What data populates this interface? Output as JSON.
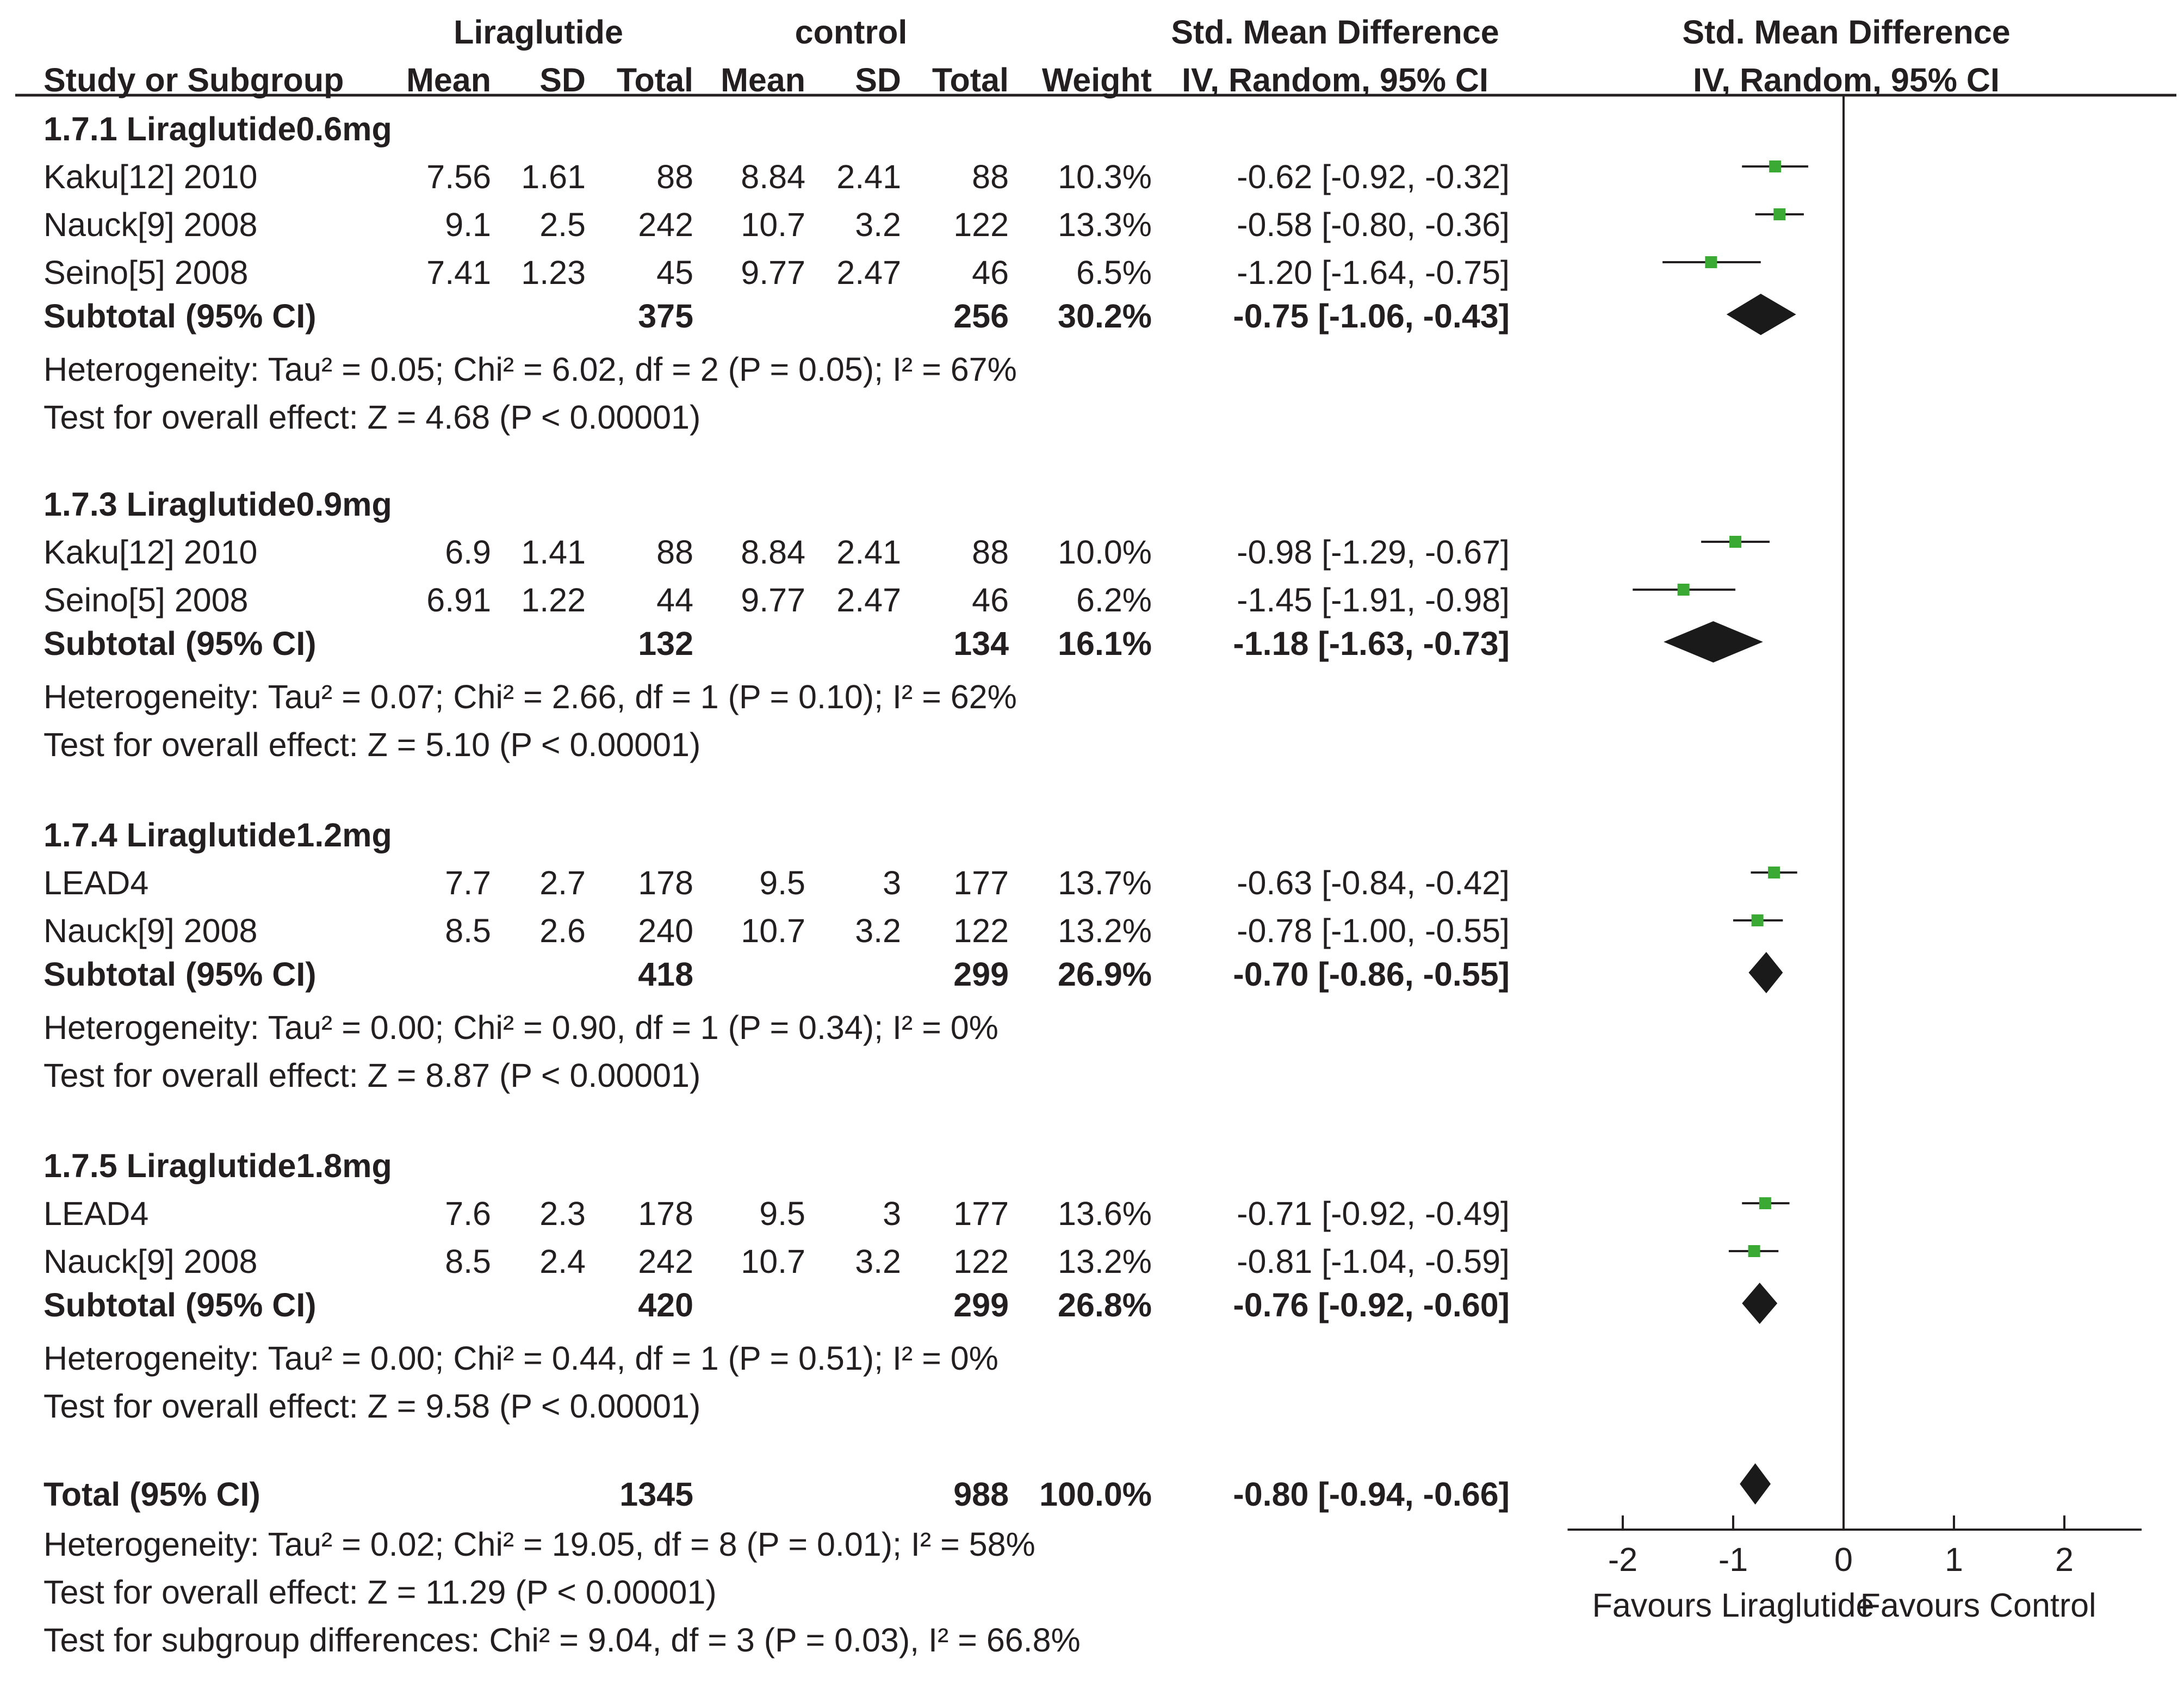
{
  "header": {
    "group1": "Liraglutide",
    "group2": "control",
    "smd_col_title": "Std. Mean Difference",
    "smd_col_method": "IV, Random, 95% CI",
    "plot_title": "Std. Mean Difference",
    "plot_method": "IV, Random, 95% CI",
    "columns": [
      "Study or Subgroup",
      "Mean",
      "SD",
      "Total",
      "Mean",
      "SD",
      "Total",
      "Weight"
    ]
  },
  "chart_data": {
    "type": "forest",
    "effect_measure": "Std. Mean Difference, IV, Random, 95% CI",
    "xlim": [
      -2.5,
      2.7
    ],
    "x_ticks": [
      -2,
      -1,
      0,
      1,
      2
    ],
    "x_tick_labels": [
      "-2",
      "-1",
      "0",
      "1",
      "2"
    ],
    "favours_left": "Favours Liraglutide",
    "favours_right": "Favours Control",
    "colors": {
      "study_marker": "#3aaa35",
      "diamond": "#1a1a1a",
      "line": "#231f20"
    },
    "subgroups": [
      {
        "title": "1.7.1 Liraglutide0.6mg",
        "studies": [
          {
            "name": "Kaku[12] 2010",
            "mean1": "7.56",
            "sd1": "1.61",
            "n1": "88",
            "mean2": "8.84",
            "sd2": "2.41",
            "n2": "88",
            "weight": "10.3%",
            "ci_text": "-0.62 [-0.92, -0.32]",
            "est": -0.62,
            "lo": -0.92,
            "hi": -0.32
          },
          {
            "name": "Nauck[9] 2008",
            "mean1": "9.1",
            "sd1": "2.5",
            "n1": "242",
            "mean2": "10.7",
            "sd2": "3.2",
            "n2": "122",
            "weight": "13.3%",
            "ci_text": "-0.58 [-0.80, -0.36]",
            "est": -0.58,
            "lo": -0.8,
            "hi": -0.36
          },
          {
            "name": "Seino[5] 2008",
            "mean1": "7.41",
            "sd1": "1.23",
            "n1": "45",
            "mean2": "9.77",
            "sd2": "2.47",
            "n2": "46",
            "weight": "6.5%",
            "ci_text": "-1.20 [-1.64, -0.75]",
            "est": -1.2,
            "lo": -1.64,
            "hi": -0.75
          }
        ],
        "subtotal": {
          "label": "Subtotal (95% CI)",
          "n1": "375",
          "n2": "256",
          "weight": "30.2%",
          "ci_text": "-0.75 [-1.06, -0.43]",
          "est": -0.75,
          "lo": -1.06,
          "hi": -0.43
        },
        "heterogeneity": "Heterogeneity: Tau² = 0.05; Chi² = 6.02, df = 2 (P = 0.05); I² = 67%",
        "overall": "Test for overall effect: Z = 4.68 (P < 0.00001)"
      },
      {
        "title": "1.7.3 Liraglutide0.9mg",
        "studies": [
          {
            "name": "Kaku[12] 2010",
            "mean1": "6.9",
            "sd1": "1.41",
            "n1": "88",
            "mean2": "8.84",
            "sd2": "2.41",
            "n2": "88",
            "weight": "10.0%",
            "ci_text": "-0.98 [-1.29, -0.67]",
            "est": -0.98,
            "lo": -1.29,
            "hi": -0.67
          },
          {
            "name": "Seino[5] 2008",
            "mean1": "6.91",
            "sd1": "1.22",
            "n1": "44",
            "mean2": "9.77",
            "sd2": "2.47",
            "n2": "46",
            "weight": "6.2%",
            "ci_text": "-1.45 [-1.91, -0.98]",
            "est": -1.45,
            "lo": -1.91,
            "hi": -0.98
          }
        ],
        "subtotal": {
          "label": "Subtotal (95% CI)",
          "n1": "132",
          "n2": "134",
          "weight": "16.1%",
          "ci_text": "-1.18 [-1.63, -0.73]",
          "est": -1.18,
          "lo": -1.63,
          "hi": -0.73
        },
        "heterogeneity": "Heterogeneity: Tau² = 0.07; Chi² = 2.66, df = 1 (P = 0.10); I² = 62%",
        "overall": "Test for overall effect: Z = 5.10 (P < 0.00001)"
      },
      {
        "title": "1.7.4 Liraglutide1.2mg",
        "studies": [
          {
            "name": "LEAD4",
            "mean1": "7.7",
            "sd1": "2.7",
            "n1": "178",
            "mean2": "9.5",
            "sd2": "3",
            "n2": "177",
            "weight": "13.7%",
            "ci_text": "-0.63 [-0.84, -0.42]",
            "est": -0.63,
            "lo": -0.84,
            "hi": -0.42
          },
          {
            "name": "Nauck[9] 2008",
            "mean1": "8.5",
            "sd1": "2.6",
            "n1": "240",
            "mean2": "10.7",
            "sd2": "3.2",
            "n2": "122",
            "weight": "13.2%",
            "ci_text": "-0.78 [-1.00, -0.55]",
            "est": -0.78,
            "lo": -1.0,
            "hi": -0.55
          }
        ],
        "subtotal": {
          "label": "Subtotal (95% CI)",
          "n1": "418",
          "n2": "299",
          "weight": "26.9%",
          "ci_text": "-0.70 [-0.86, -0.55]",
          "est": -0.7,
          "lo": -0.86,
          "hi": -0.55
        },
        "heterogeneity": "Heterogeneity: Tau² = 0.00; Chi² = 0.90, df = 1 (P = 0.34); I² = 0%",
        "overall": "Test for overall effect: Z = 8.87 (P < 0.00001)"
      },
      {
        "title": "1.7.5 Liraglutide1.8mg",
        "studies": [
          {
            "name": "LEAD4",
            "mean1": "7.6",
            "sd1": "2.3",
            "n1": "178",
            "mean2": "9.5",
            "sd2": "3",
            "n2": "177",
            "weight": "13.6%",
            "ci_text": "-0.71 [-0.92, -0.49]",
            "est": -0.71,
            "lo": -0.92,
            "hi": -0.49
          },
          {
            "name": "Nauck[9] 2008",
            "mean1": "8.5",
            "sd1": "2.4",
            "n1": "242",
            "mean2": "10.7",
            "sd2": "3.2",
            "n2": "122",
            "weight": "13.2%",
            "ci_text": "-0.81 [-1.04, -0.59]",
            "est": -0.81,
            "lo": -1.04,
            "hi": -0.59
          }
        ],
        "subtotal": {
          "label": "Subtotal (95% CI)",
          "n1": "420",
          "n2": "299",
          "weight": "26.8%",
          "ci_text": "-0.76 [-0.92, -0.60]",
          "est": -0.76,
          "lo": -0.92,
          "hi": -0.6
        },
        "heterogeneity": "Heterogeneity: Tau² = 0.00; Chi² = 0.44, df = 1 (P = 0.51); I² = 0%",
        "overall": "Test for overall effect: Z = 9.58 (P < 0.00001)"
      }
    ],
    "total": {
      "label": "Total (95% CI)",
      "n1": "1345",
      "n2": "988",
      "weight": "100.0%",
      "ci_text": "-0.80 [-0.94, -0.66]",
      "est": -0.8,
      "lo": -0.94,
      "hi": -0.66
    },
    "footer": [
      "Heterogeneity: Tau² = 0.02; Chi² = 19.05, df = 8 (P = 0.01); I² = 58%",
      "Test for overall effect: Z = 11.29 (P < 0.00001)",
      "Test for subgroup differences: Chi² = 9.04, df = 3 (P = 0.03), I² = 66.8%"
    ]
  }
}
